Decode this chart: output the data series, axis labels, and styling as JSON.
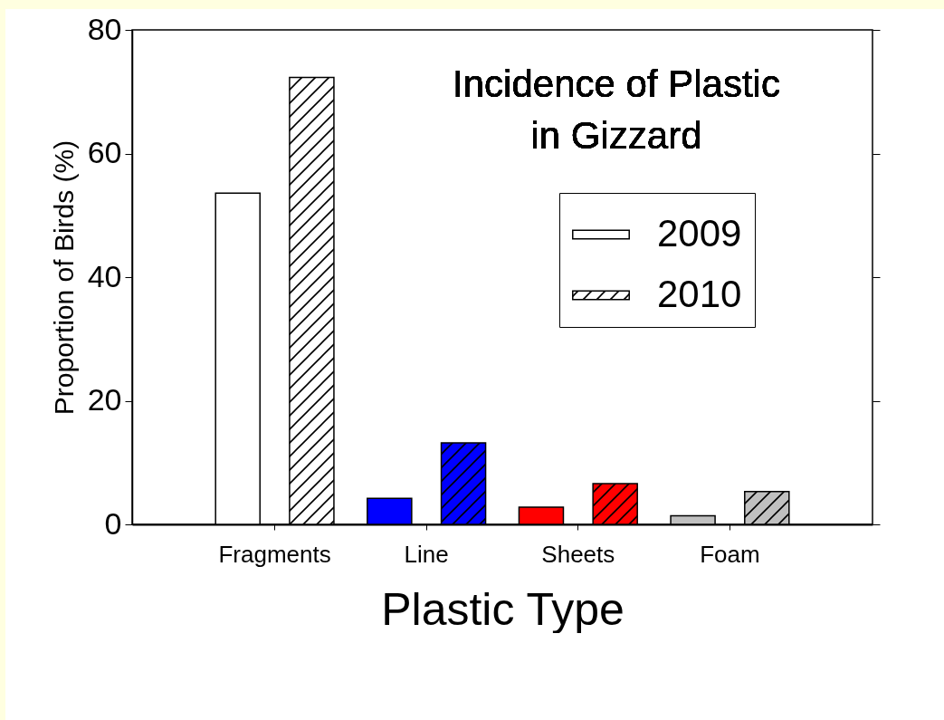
{
  "chart_data": {
    "type": "bar",
    "title": "Incidence of Plastic in Gizzard",
    "xlabel": "Plastic Type",
    "ylabel": "Proportion of Birds (%)",
    "categories": [
      "Fragments",
      "Line",
      "Sheets",
      "Foam"
    ],
    "series": [
      {
        "name": "2009",
        "color": "#ffffff",
        "colors": [
          "#ffffff",
          "#0000ff",
          "#ff0000",
          "#c0c0c0"
        ],
        "values": [
          53.6,
          4.2,
          2.8,
          1.4
        ]
      },
      {
        "name": "2010",
        "color": "#ffffff",
        "colors": [
          "#ffffff",
          "#0000ff",
          "#ff0000",
          "#c0c0c0"
        ],
        "values": [
          72.3,
          13.2,
          6.6,
          5.3
        ]
      }
    ],
    "ylim": [
      0,
      80
    ],
    "yticks": [
      0,
      20,
      40,
      60,
      80
    ],
    "grid": false,
    "legend": "top right"
  }
}
